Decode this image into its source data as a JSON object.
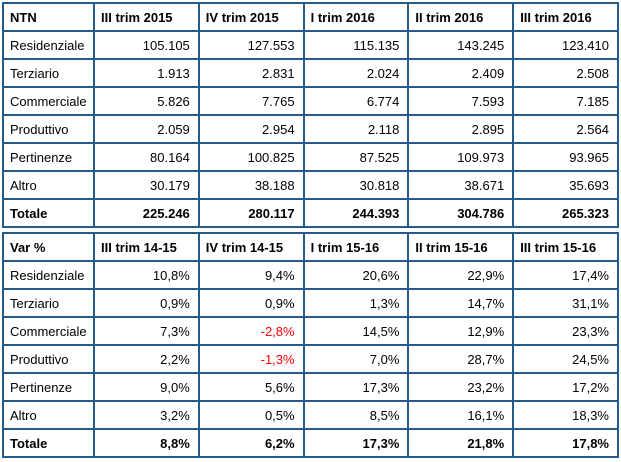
{
  "colors": {
    "border": "#265A88",
    "negative_value": "#FF0000",
    "text": "#000000",
    "background": "#FFFFFF"
  },
  "table1": {
    "title": "NTN",
    "columns": [
      "III trim 2015",
      "IV trim 2015",
      "I trim 2016",
      "II trim 2016",
      "III trim 2016"
    ],
    "rows": [
      {
        "label": "Residenziale",
        "values": [
          "105.105",
          "127.553",
          "115.135",
          "143.245",
          "123.410"
        ],
        "bold": false
      },
      {
        "label": "Terziario",
        "values": [
          "1.913",
          "2.831",
          "2.024",
          "2.409",
          "2.508"
        ],
        "bold": false
      },
      {
        "label": "Commerciale",
        "values": [
          "5.826",
          "7.765",
          "6.774",
          "7.593",
          "7.185"
        ],
        "bold": false
      },
      {
        "label": "Produttivo",
        "values": [
          "2.059",
          "2.954",
          "2.118",
          "2.895",
          "2.564"
        ],
        "bold": false
      },
      {
        "label": "Pertinenze",
        "values": [
          "80.164",
          "100.825",
          "87.525",
          "109.973",
          "93.965"
        ],
        "bold": false
      },
      {
        "label": "Altro",
        "values": [
          "30.179",
          "38.188",
          "30.818",
          "38.671",
          "35.693"
        ],
        "bold": false
      },
      {
        "label": "Totale",
        "values": [
          "225.246",
          "280.117",
          "244.393",
          "304.786",
          "265.323"
        ],
        "bold": true
      }
    ]
  },
  "table2": {
    "title": "Var %",
    "columns": [
      "III trim 14-15",
      "IV trim 14-15",
      "I trim 15-16",
      "II trim 15-16",
      "III trim 15-16"
    ],
    "rows": [
      {
        "label": "Residenziale",
        "values": [
          "10,8%",
          "9,4%",
          "20,6%",
          "22,9%",
          "17,4%"
        ],
        "bold": false
      },
      {
        "label": "Terziario",
        "values": [
          "0,9%",
          "0,9%",
          "1,3%",
          "14,7%",
          "31,1%"
        ],
        "bold": false
      },
      {
        "label": "Commerciale",
        "values": [
          "7,3%",
          "-2,8%",
          "14,5%",
          "12,9%",
          "23,3%"
        ],
        "bold": false
      },
      {
        "label": "Produttivo",
        "values": [
          "2,2%",
          "-1,3%",
          "7,0%",
          "28,7%",
          "24,5%"
        ],
        "bold": false
      },
      {
        "label": "Pertinenze",
        "values": [
          "9,0%",
          "5,6%",
          "17,3%",
          "23,2%",
          "17,2%"
        ],
        "bold": false
      },
      {
        "label": "Altro",
        "values": [
          "3,2%",
          "0,5%",
          "8,5%",
          "16,1%",
          "18,3%"
        ],
        "bold": false
      },
      {
        "label": "Totale",
        "values": [
          "8,8%",
          "6,2%",
          "17,3%",
          "21,8%",
          "17,8%"
        ],
        "bold": true
      }
    ]
  }
}
